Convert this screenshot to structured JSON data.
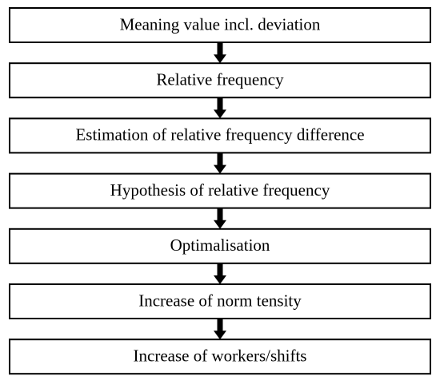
{
  "nodes": [
    {
      "label": "Meaning value incl. deviation"
    },
    {
      "label": "Relative frequency"
    },
    {
      "label": "Estimation of relative frequency difference"
    },
    {
      "label": "Hypothesis of relative frequency"
    },
    {
      "label": "Optimalisation"
    },
    {
      "label": "Increase of norm tensity"
    },
    {
      "label": "Increase of workers/shifts"
    }
  ]
}
